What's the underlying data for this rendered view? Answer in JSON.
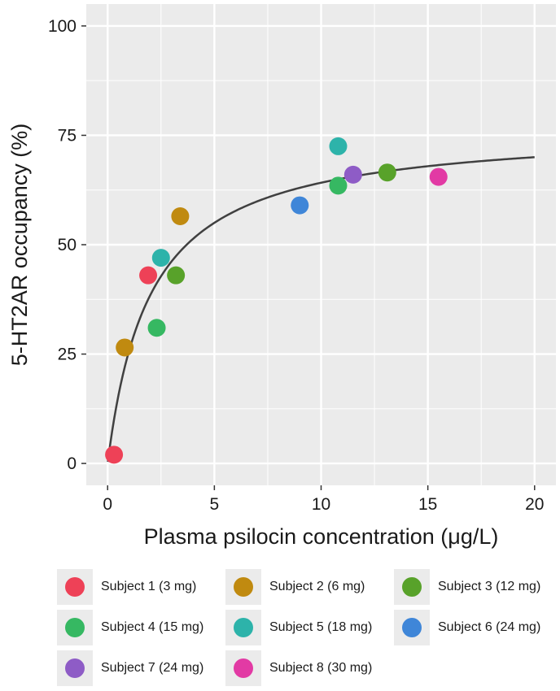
{
  "chart_data": {
    "type": "scatter",
    "xlabel": "Plasma psilocin concentration (μg/L)",
    "ylabel": "5-HT2AR occupancy (%)",
    "xlim": [
      -1.0,
      21.0
    ],
    "ylim": [
      -5.0,
      105.0
    ],
    "x_ticks": [
      0,
      5,
      10,
      15,
      20
    ],
    "y_ticks": [
      0,
      25,
      50,
      75,
      100
    ],
    "x_tick_labels": [
      "0",
      "5",
      "10",
      "15",
      "20"
    ],
    "y_tick_labels": [
      "0",
      "25",
      "50",
      "75",
      "100"
    ],
    "grid": true,
    "legend_position": "bottom",
    "fit_curve": {
      "model": "Emax",
      "emax": 77,
      "ec50": 2.0,
      "x_range": [
        0.01,
        20
      ]
    },
    "series": [
      {
        "name": "Subject 1 (3 mg)",
        "color": "#ee4157",
        "points": [
          [
            0.3,
            2
          ],
          [
            1.9,
            43
          ]
        ]
      },
      {
        "name": "Subject 2 (6 mg)",
        "color": "#c08a10",
        "points": [
          [
            0.8,
            26.5
          ],
          [
            3.4,
            56.5
          ]
        ]
      },
      {
        "name": "Subject 3 (12 mg)",
        "color": "#58a22a",
        "points": [
          [
            3.2,
            43
          ],
          [
            13.1,
            66.5
          ]
        ]
      },
      {
        "name": "Subject 4 (15 mg)",
        "color": "#36b862",
        "points": [
          [
            2.3,
            31
          ],
          [
            10.8,
            63.5
          ]
        ]
      },
      {
        "name": "Subject 5 (18 mg)",
        "color": "#2db3aa",
        "points": [
          [
            2.5,
            47
          ],
          [
            10.8,
            72.5
          ]
        ]
      },
      {
        "name": "Subject 6 (24 mg)",
        "color": "#3f86d8",
        "points": [
          [
            9.0,
            59
          ]
        ]
      },
      {
        "name": "Subject 7 (24 mg)",
        "color": "#8e5cc6",
        "points": [
          [
            11.5,
            66
          ]
        ]
      },
      {
        "name": "Subject 8 (30 mg)",
        "color": "#e23aa4",
        "points": [
          [
            15.5,
            65.5
          ]
        ]
      }
    ]
  }
}
